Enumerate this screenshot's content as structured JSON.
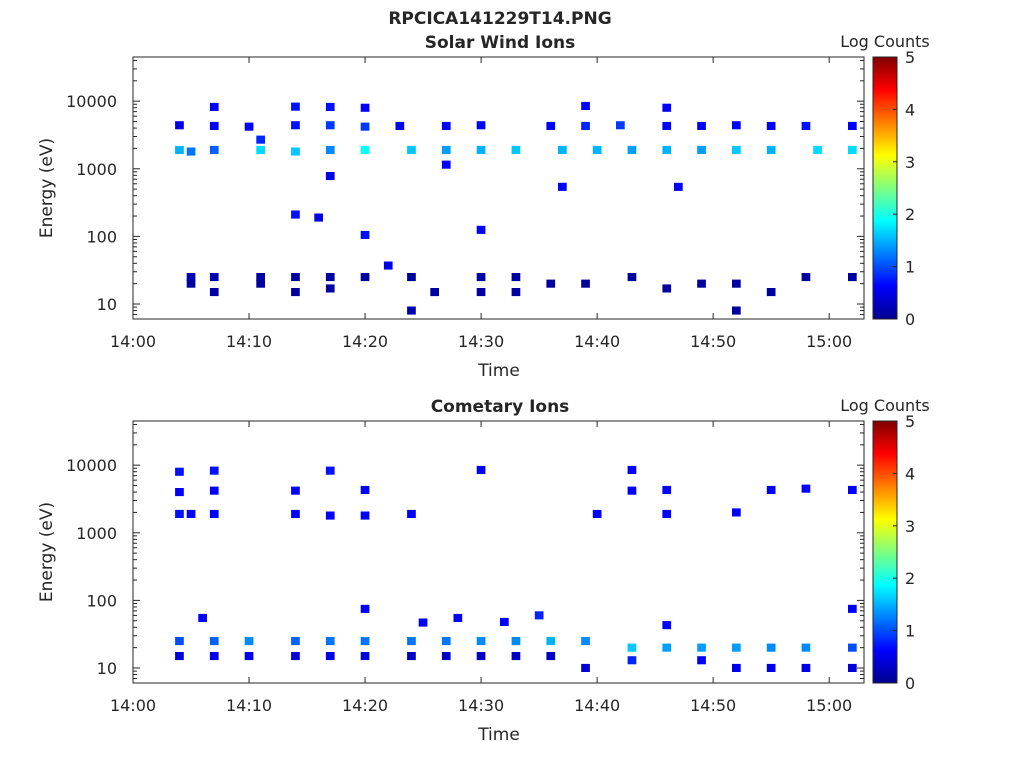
{
  "figure_title": "RPCICA141229T14.PNG",
  "chart_data": [
    {
      "type": "heatmap",
      "title": "Solar Wind Ions",
      "xlabel": "Time",
      "ylabel": "Energy (eV)",
      "x_ticks": [
        "14:00",
        "14:10",
        "14:20",
        "14:30",
        "14:40",
        "14:50",
        "15:00"
      ],
      "x_range": [
        "14:00",
        "15:03"
      ],
      "y_scale": "log",
      "y_ticks": [
        "10",
        "100",
        "1000",
        "10000"
      ],
      "y_range": [
        6,
        45000
      ],
      "colorbar": {
        "label": "Log Counts",
        "range": [
          0,
          5
        ],
        "ticks": [
          "0",
          "1",
          "2",
          "3",
          "4",
          "5"
        ],
        "colormap": "jet"
      },
      "grid": false,
      "cells": [
        [
          "14:04",
          4400,
          0.5
        ],
        [
          "14:04",
          1900,
          1.5
        ],
        [
          "14:05",
          1800,
          1.2
        ],
        [
          "14:05",
          25,
          0.2
        ],
        [
          "14:05",
          20,
          0.1
        ],
        [
          "14:07",
          8200,
          0.6
        ],
        [
          "14:07",
          4300,
          0.6
        ],
        [
          "14:07",
          1900,
          1.1
        ],
        [
          "14:07",
          25,
          0.2
        ],
        [
          "14:07",
          15,
          0.1
        ],
        [
          "14:10",
          4200,
          0.6
        ],
        [
          "14:11",
          2700,
          0.8
        ],
        [
          "14:11",
          1900,
          1.7
        ],
        [
          "14:11",
          25,
          0.1
        ],
        [
          "14:11",
          20,
          0.1
        ],
        [
          "14:14",
          8300,
          0.7
        ],
        [
          "14:14",
          4400,
          0.7
        ],
        [
          "14:14",
          1800,
          1.6
        ],
        [
          "14:14",
          25,
          0.1
        ],
        [
          "14:14",
          15,
          0.1
        ],
        [
          "14:14",
          210,
          0.7
        ],
        [
          "14:16",
          190,
          0.5
        ],
        [
          "14:17",
          8200,
          0.7
        ],
        [
          "14:17",
          4400,
          0.9
        ],
        [
          "14:17",
          1900,
          1.3
        ],
        [
          "14:17",
          25,
          0.1
        ],
        [
          "14:17",
          17,
          0.1
        ],
        [
          "14:17",
          780,
          0.5
        ],
        [
          "14:20",
          8000,
          0.6
        ],
        [
          "14:20",
          4200,
          0.9
        ],
        [
          "14:20",
          1900,
          1.9
        ],
        [
          "14:20",
          25,
          0.1
        ],
        [
          "14:20",
          105,
          0.7
        ],
        [
          "14:22",
          37,
          0.5
        ],
        [
          "14:23",
          4300,
          0.6
        ],
        [
          "14:24",
          1900,
          1.6
        ],
        [
          "14:24",
          25,
          0.1
        ],
        [
          "14:24",
          8,
          0.2
        ],
        [
          "14:27",
          4300,
          0.6
        ],
        [
          "14:27",
          1900,
          1.4
        ],
        [
          "14:27",
          1150,
          0.6
        ],
        [
          "14:26",
          15,
          0.1
        ],
        [
          "14:30",
          4400,
          0.6
        ],
        [
          "14:30",
          1900,
          1.5
        ],
        [
          "14:30",
          25,
          0.1
        ],
        [
          "14:30",
          15,
          0.1
        ],
        [
          "14:30",
          125,
          0.6
        ],
        [
          "14:33",
          1900,
          1.6
        ],
        [
          "14:33",
          25,
          0.1
        ],
        [
          "14:33",
          15,
          0.1
        ],
        [
          "14:36",
          4300,
          0.6
        ],
        [
          "14:37",
          1900,
          1.5
        ],
        [
          "14:37",
          540,
          0.6
        ],
        [
          "14:36",
          20,
          0.1
        ],
        [
          "14:39",
          8500,
          0.6
        ],
        [
          "14:39",
          4300,
          0.8
        ],
        [
          "14:40",
          1900,
          1.5
        ],
        [
          "14:39",
          20,
          0.1
        ],
        [
          "14:42",
          4400,
          0.9
        ],
        [
          "14:43",
          1900,
          1.4
        ],
        [
          "14:43",
          25,
          0.1
        ],
        [
          "14:46",
          8000,
          0.6
        ],
        [
          "14:46",
          4300,
          0.6
        ],
        [
          "14:46",
          1900,
          1.5
        ],
        [
          "14:47",
          540,
          0.6
        ],
        [
          "14:46",
          17,
          0.1
        ],
        [
          "14:49",
          4300,
          0.6
        ],
        [
          "14:49",
          1900,
          1.4
        ],
        [
          "14:49",
          20,
          0.1
        ],
        [
          "14:52",
          4400,
          0.6
        ],
        [
          "14:52",
          1900,
          1.6
        ],
        [
          "14:52",
          20,
          0.1
        ],
        [
          "14:52",
          8,
          0.1
        ],
        [
          "14:55",
          4300,
          0.6
        ],
        [
          "14:55",
          1900,
          1.5
        ],
        [
          "14:55",
          15,
          0.1
        ],
        [
          "14:58",
          4300,
          0.7
        ],
        [
          "14:59",
          1900,
          1.7
        ],
        [
          "14:58",
          25,
          0.1
        ],
        [
          "15:02",
          4300,
          0.6
        ],
        [
          "15:02",
          1900,
          1.7
        ],
        [
          "15:02",
          25,
          0.1
        ]
      ]
    },
    {
      "type": "heatmap",
      "title": "Cometary Ions",
      "xlabel": "Time",
      "ylabel": "Energy (eV)",
      "x_ticks": [
        "14:00",
        "14:10",
        "14:20",
        "14:30",
        "14:40",
        "14:50",
        "15:00"
      ],
      "x_range": [
        "14:00",
        "15:03"
      ],
      "y_scale": "log",
      "y_ticks": [
        "10",
        "100",
        "1000",
        "10000"
      ],
      "y_range": [
        6,
        45000
      ],
      "colorbar": {
        "label": "Log Counts",
        "range": [
          0,
          5
        ],
        "ticks": [
          "0",
          "1",
          "2",
          "3",
          "4",
          "5"
        ],
        "colormap": "jet"
      },
      "grid": false,
      "cells": [
        [
          "14:04",
          8000,
          0.7
        ],
        [
          "14:04",
          4000,
          0.6
        ],
        [
          "14:04",
          1900,
          0.7
        ],
        [
          "14:05",
          1900,
          0.6
        ],
        [
          "14:04",
          25,
          1.0
        ],
        [
          "14:04",
          15,
          0.4
        ],
        [
          "14:06",
          55,
          0.6
        ],
        [
          "14:07",
          8300,
          0.7
        ],
        [
          "14:07",
          4200,
          0.6
        ],
        [
          "14:07",
          1900,
          0.6
        ],
        [
          "14:07",
          25,
          1.1
        ],
        [
          "14:07",
          15,
          0.5
        ],
        [
          "14:10",
          25,
          1.3
        ],
        [
          "14:10",
          15,
          0.5
        ],
        [
          "14:14",
          4200,
          0.6
        ],
        [
          "14:14",
          1900,
          0.6
        ],
        [
          "14:14",
          25,
          1.1
        ],
        [
          "14:14",
          15,
          0.4
        ],
        [
          "14:17",
          8300,
          0.7
        ],
        [
          "14:17",
          1800,
          0.6
        ],
        [
          "14:17",
          25,
          1.2
        ],
        [
          "14:17",
          15,
          0.5
        ],
        [
          "14:20",
          4300,
          0.6
        ],
        [
          "14:20",
          1800,
          0.6
        ],
        [
          "14:20",
          75,
          0.6
        ],
        [
          "14:20",
          25,
          1.2
        ],
        [
          "14:20",
          15,
          0.4
        ],
        [
          "14:24",
          1900,
          0.6
        ],
        [
          "14:24",
          25,
          1.2
        ],
        [
          "14:24",
          15,
          0.3
        ],
        [
          "14:25",
          47,
          0.6
        ],
        [
          "14:27",
          25,
          1.2
        ],
        [
          "14:27",
          15,
          0.3
        ],
        [
          "14:28",
          55,
          0.6
        ],
        [
          "14:30",
          8500,
          0.6
        ],
        [
          "14:30",
          25,
          1.3
        ],
        [
          "14:30",
          15,
          0.3
        ],
        [
          "14:32",
          48,
          0.6
        ],
        [
          "14:33",
          25,
          1.3
        ],
        [
          "14:33",
          15,
          0.3
        ],
        [
          "14:35",
          60,
          0.8
        ],
        [
          "14:36",
          25,
          1.5
        ],
        [
          "14:36",
          15,
          0.3
        ],
        [
          "14:39",
          25,
          1.3
        ],
        [
          "14:39",
          10,
          0.4
        ],
        [
          "14:40",
          1900,
          0.6
        ],
        [
          "14:43",
          8500,
          0.6
        ],
        [
          "14:43",
          4200,
          0.6
        ],
        [
          "14:43",
          20,
          1.6
        ],
        [
          "14:43",
          13,
          0.8
        ],
        [
          "14:46",
          4300,
          0.6
        ],
        [
          "14:46",
          1900,
          0.6
        ],
        [
          "14:46",
          43,
          0.6
        ],
        [
          "14:46",
          20,
          1.4
        ],
        [
          "14:49",
          20,
          1.4
        ],
        [
          "14:49",
          13,
          0.6
        ],
        [
          "14:52",
          2000,
          0.6
        ],
        [
          "14:52",
          20,
          1.4
        ],
        [
          "14:52",
          10,
          0.5
        ],
        [
          "14:55",
          4300,
          0.6
        ],
        [
          "14:55",
          20,
          1.3
        ],
        [
          "14:55",
          10,
          0.5
        ],
        [
          "14:58",
          4500,
          0.6
        ],
        [
          "14:58",
          20,
          1.3
        ],
        [
          "14:58",
          10,
          0.5
        ],
        [
          "15:02",
          4300,
          0.6
        ],
        [
          "15:02",
          75,
          0.6
        ],
        [
          "15:02",
          20,
          1.0
        ],
        [
          "15:02",
          10,
          0.4
        ]
      ]
    }
  ]
}
